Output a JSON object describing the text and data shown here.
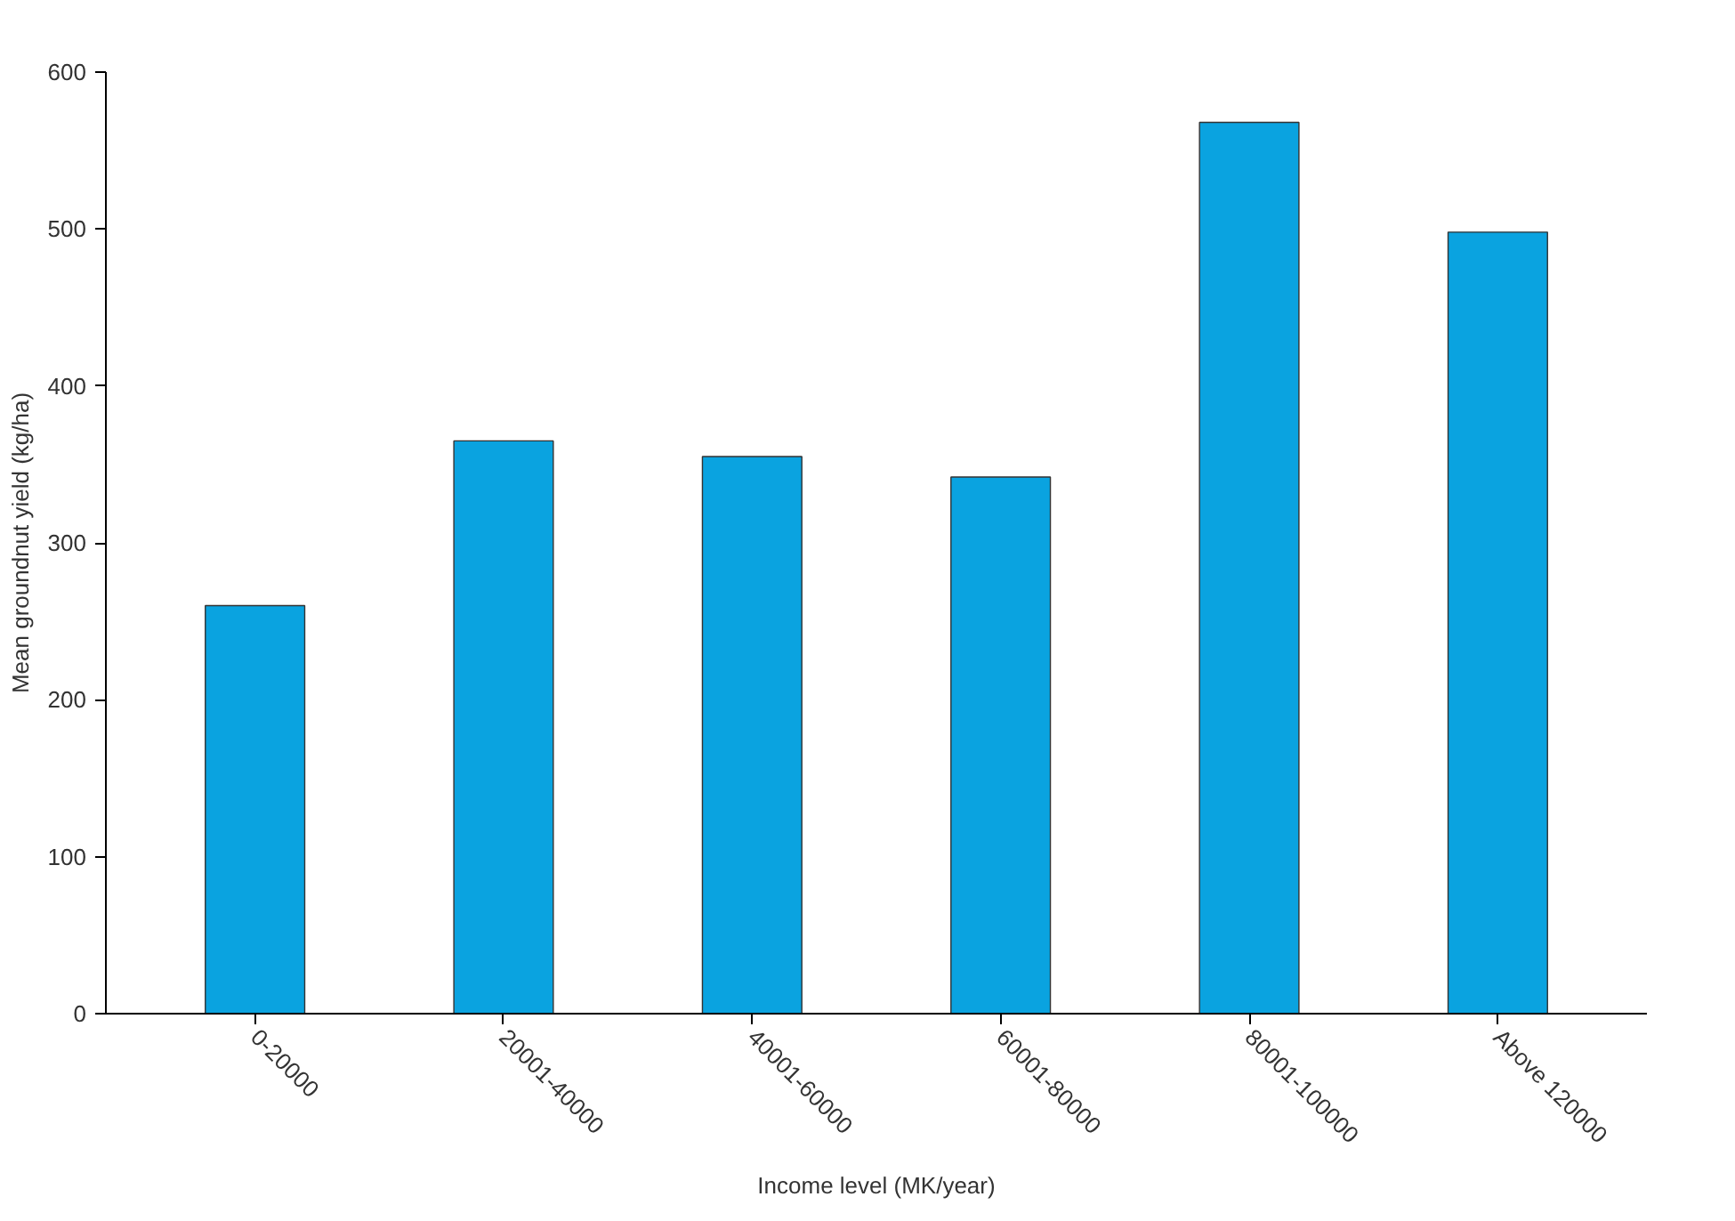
{
  "chart_data": {
    "type": "bar",
    "xlabel": "Income level (MK/year)",
    "ylabel": "Mean groundnut yield (kg/ha)",
    "categories": [
      "0-20000",
      "20001-40000",
      "40001-60000",
      "60001-80000",
      "80001-100000",
      "Above 120000"
    ],
    "values": [
      260,
      365,
      355,
      342,
      568,
      498
    ],
    "color": "#0aa3e0",
    "ylim": [
      0,
      600
    ],
    "yticks": [
      0,
      100,
      200,
      300,
      400,
      500,
      600
    ],
    "grid": false
  }
}
